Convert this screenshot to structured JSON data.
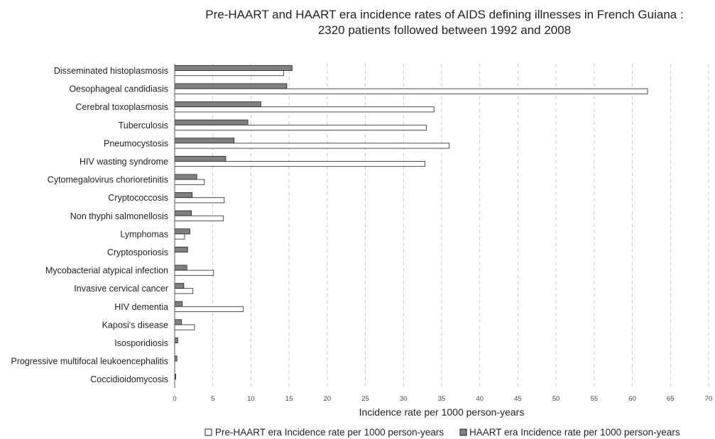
{
  "chart_data": {
    "type": "bar",
    "orientation": "horizontal",
    "title": "Pre-HAART and HAART era incidence rates of AIDS defining illnesses in French Guiana :",
    "subtitle": "2320 patients followed between 1992 and 2008",
    "xlabel": "Incidence rate per 1000 person-years",
    "ylabel": "",
    "xlim": [
      0,
      70
    ],
    "xticks": [
      "0",
      "5",
      "10",
      "15",
      "20",
      "25",
      "30",
      "35",
      "40",
      "45",
      "50",
      "55",
      "60",
      "65",
      "70"
    ],
    "grid": "vertical dashed",
    "legend_position": "bottom-right",
    "categories": [
      "Disseminated histoplasmosis",
      "Oesophageal candidiasis",
      "Cerebral toxoplasmosis",
      "Tuberculosis",
      "Pneumocystosis",
      "HIV wasting syndrome",
      "Cytomegalovirus chorioretinitis",
      "Cryptococcosis",
      "Non thyphi salmonellosis",
      "Lymphomas",
      "Cryptosporiosis",
      "Mycobacterial atypical infection",
      "Invasive cervical cancer",
      "HIV dementia",
      "Kaposi's disease",
      "Isosporidiosis",
      "Progressive multifocal leukoencephalitis",
      "Coccidioidomycosis"
    ],
    "series": [
      {
        "name": "Pre-HAART era Incidence rate per 1000 person-years",
        "color": "#ffffff",
        "values": [
          14.3,
          62,
          34,
          33,
          36,
          32.8,
          3.9,
          6.5,
          6.4,
          1.3,
          0,
          5.1,
          2.4,
          9,
          2.6,
          0,
          0,
          0
        ]
      },
      {
        "name": "HAART era Incidence rate per 1000 person-years",
        "color": "#808080",
        "values": [
          15.4,
          14.7,
          11.3,
          9.6,
          7.8,
          6.7,
          2.9,
          2.3,
          2.2,
          2,
          1.7,
          1.6,
          1.2,
          1,
          0.9,
          0.4,
          0.3,
          0.15
        ]
      }
    ]
  }
}
